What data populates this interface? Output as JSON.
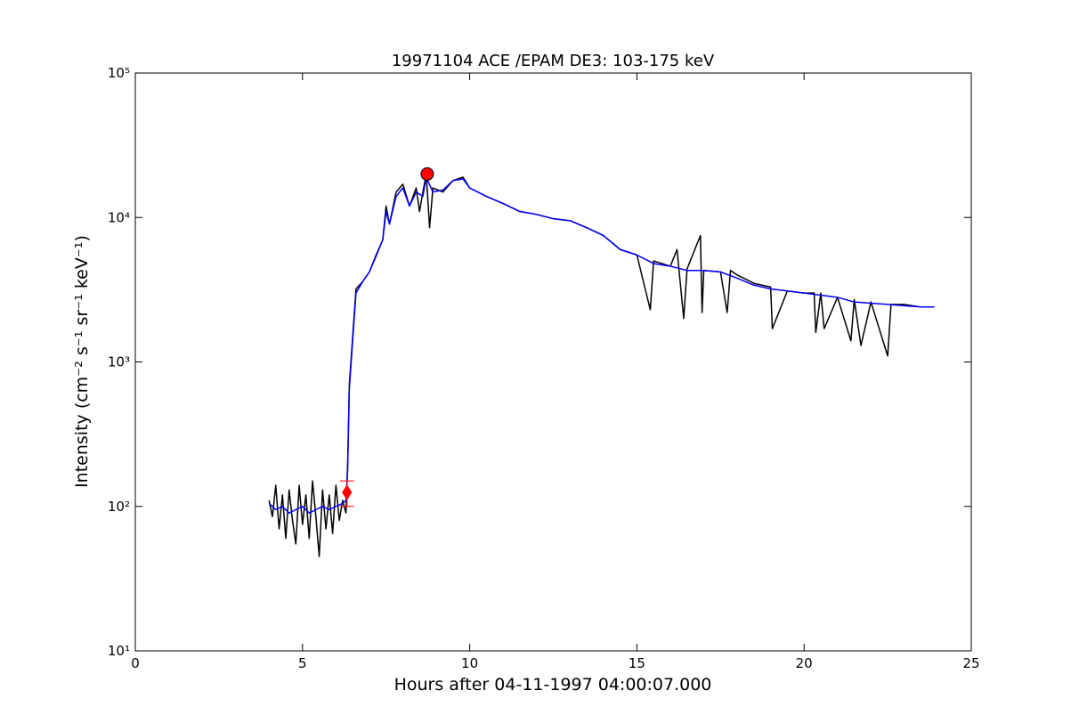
{
  "chart_data": {
    "type": "line",
    "title": "19971104 ACE /EPAM DE3: 103-175 keV",
    "x_label": "Hours after 04-11-1997 04:00:07.000",
    "y_label": "Intensity (cm⁻² s⁻¹ sr⁻¹ keV⁻¹)",
    "xlim": [
      0,
      25
    ],
    "xticks": [
      0,
      5,
      10,
      15,
      20,
      25
    ],
    "ylim": [
      10,
      100000
    ],
    "yticks": [
      {
        "value": 10,
        "label": "10¹"
      },
      {
        "value": 100,
        "label": "10²"
      },
      {
        "value": 1000,
        "label": "10³"
      },
      {
        "value": 10000,
        "label": "10⁴"
      },
      {
        "value": 100000,
        "label": "10⁵"
      }
    ],
    "y_log": true,
    "grid": false,
    "series": [
      {
        "color": "#000000",
        "x": [
          4.0,
          4.1,
          4.2,
          4.3,
          4.4,
          4.5,
          4.6,
          4.7,
          4.8,
          4.9,
          5.0,
          5.1,
          5.2,
          5.3,
          5.4,
          5.5,
          5.6,
          5.7,
          5.8,
          5.9,
          6.0,
          6.1,
          6.2,
          6.3,
          6.35,
          6.4,
          6.5,
          6.6,
          6.8,
          7.0,
          7.2,
          7.4,
          7.5,
          7.6,
          7.8,
          8.0,
          8.2,
          8.4,
          8.5,
          8.6,
          8.7,
          8.8,
          8.9,
          9.2,
          9.5,
          9.8,
          10.0,
          10.5,
          11.0,
          11.5,
          12.0,
          12.5,
          13.0,
          13.5,
          14.0,
          14.5,
          15.0,
          15.4,
          15.5,
          16.0,
          16.2,
          16.4,
          16.5,
          16.9,
          16.95,
          17.0,
          17.5,
          17.7,
          17.8,
          18.0,
          18.5,
          19.0,
          19.05,
          19.5,
          20.0,
          20.3,
          20.35,
          20.5,
          20.6,
          21.0,
          21.4,
          21.5,
          21.7,
          22.0,
          22.5,
          22.6,
          23.0,
          23.5,
          23.9
        ],
        "values": [
          110,
          85,
          140,
          70,
          120,
          60,
          130,
          80,
          55,
          140,
          75,
          120,
          60,
          150,
          85,
          45,
          130,
          70,
          120,
          65,
          140,
          80,
          110,
          90,
          200,
          700,
          1500,
          3200,
          3600,
          4200,
          5500,
          7000,
          12000,
          9000,
          15000,
          17000,
          12000,
          16000,
          11000,
          15000,
          20000,
          8500,
          16000,
          15000,
          18000,
          19000,
          16000,
          14000,
          12500,
          11000,
          10500,
          9800,
          9500,
          8500,
          7500,
          6000,
          5500,
          2300,
          5000,
          4600,
          6000,
          2000,
          4400,
          7500,
          2200,
          4300,
          4200,
          2200,
          4300,
          4000,
          3500,
          3300,
          1700,
          3100,
          3000,
          3000,
          1600,
          3000,
          1700,
          2800,
          1400,
          2700,
          1300,
          2600,
          1100,
          2500,
          2500,
          2400,
          2400
        ]
      },
      {
        "color": "#0000ff",
        "x": [
          4.0,
          4.2,
          4.4,
          4.6,
          4.8,
          5.0,
          5.2,
          5.4,
          5.6,
          5.8,
          6.0,
          6.2,
          6.3,
          6.35,
          6.4,
          6.5,
          6.6,
          6.8,
          7.0,
          7.2,
          7.4,
          7.5,
          7.6,
          7.8,
          8.0,
          8.2,
          8.4,
          8.6,
          8.7,
          8.9,
          9.2,
          9.5,
          9.8,
          10.0,
          10.5,
          11.0,
          11.5,
          12.0,
          12.5,
          13.0,
          13.5,
          14.0,
          14.5,
          15.0,
          15.5,
          16.0,
          16.5,
          17.0,
          17.5,
          18.0,
          18.5,
          19.0,
          19.5,
          20.0,
          20.5,
          21.0,
          21.5,
          22.0,
          22.5,
          23.0,
          23.5,
          23.9
        ],
        "values": [
          105,
          95,
          100,
          90,
          95,
          100,
          90,
          95,
          100,
          95,
          100,
          105,
          110,
          180,
          650,
          1400,
          3000,
          3600,
          4200,
          5400,
          7000,
          11000,
          9000,
          14000,
          16000,
          12000,
          15000,
          14000,
          19000,
          15000,
          15500,
          18000,
          18500,
          16000,
          14000,
          12500,
          11000,
          10500,
          9800,
          9500,
          8500,
          7500,
          6000,
          5500,
          4800,
          4600,
          4300,
          4300,
          4200,
          3800,
          3400,
          3200,
          3100,
          3000,
          2900,
          2800,
          2600,
          2550,
          2500,
          2450,
          2400,
          2400
        ]
      }
    ],
    "markers": [
      {
        "x": 8.73,
        "y": 20000,
        "shape": "circle",
        "color": "#ff0000"
      },
      {
        "x": 6.33,
        "y": 125,
        "yerr": 25,
        "shape": "diamond",
        "color": "#ff0000"
      }
    ]
  }
}
